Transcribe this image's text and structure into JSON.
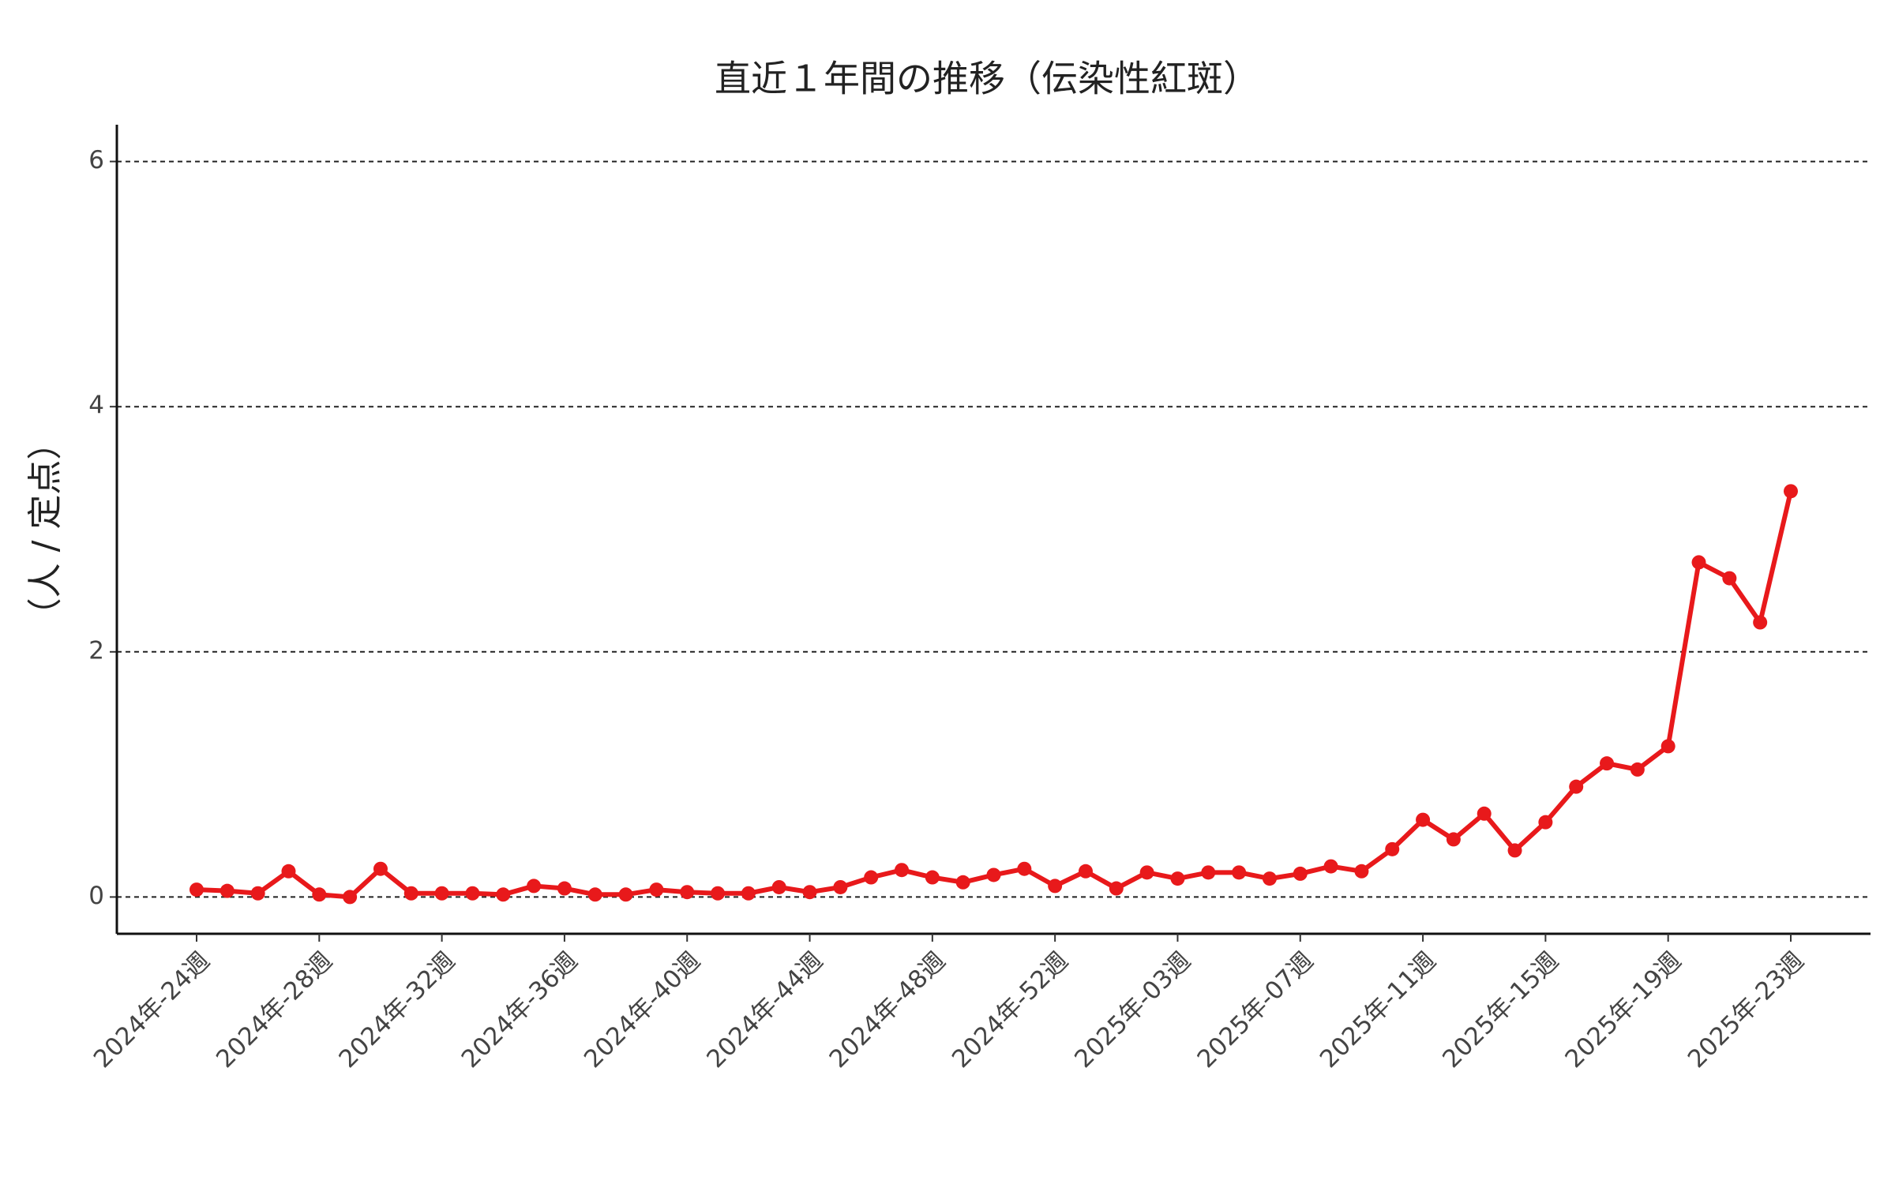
{
  "chart_data": {
    "type": "line",
    "title": "直近１年間の推移（伝染性紅斑）",
    "y_label": "（人 / 定点）",
    "categories": [
      "2024年-24週",
      null,
      null,
      null,
      "2024年-28週",
      null,
      null,
      null,
      "2024年-32週",
      null,
      null,
      null,
      "2024年-36週",
      null,
      null,
      null,
      "2024年-40週",
      null,
      null,
      null,
      "2024年-44週",
      null,
      null,
      null,
      "2024年-48週",
      null,
      null,
      null,
      "2024年-52週",
      null,
      null,
      null,
      "2025年-03週",
      null,
      null,
      null,
      "2025年-07週",
      null,
      null,
      null,
      "2025年-11週",
      null,
      null,
      null,
      "2025年-15週",
      null,
      null,
      null,
      "2025年-19週",
      null,
      null,
      null,
      "2025年-23週"
    ],
    "series": [
      {
        "name": "伝染性紅斑",
        "color": "#e8191b",
        "values": [
          0.06,
          0.05,
          0.03,
          0.21,
          0.02,
          0.0,
          0.23,
          0.03,
          0.03,
          0.03,
          0.02,
          0.09,
          0.07,
          0.02,
          0.02,
          0.06,
          0.04,
          0.03,
          0.03,
          0.08,
          0.04,
          0.08,
          0.16,
          0.22,
          0.16,
          0.12,
          0.18,
          0.23,
          0.09,
          0.21,
          0.07,
          0.2,
          0.15,
          0.2,
          0.2,
          0.15,
          0.19,
          0.25,
          0.21,
          0.39,
          0.63,
          0.47,
          0.68,
          0.38,
          0.61,
          0.9,
          1.09,
          1.04,
          1.23,
          2.73,
          2.6,
          2.24,
          3.31
        ]
      }
    ],
    "ylim": [
      -0.3,
      6.3
    ],
    "yticks": [
      0,
      2,
      4,
      6
    ],
    "grid": true
  }
}
